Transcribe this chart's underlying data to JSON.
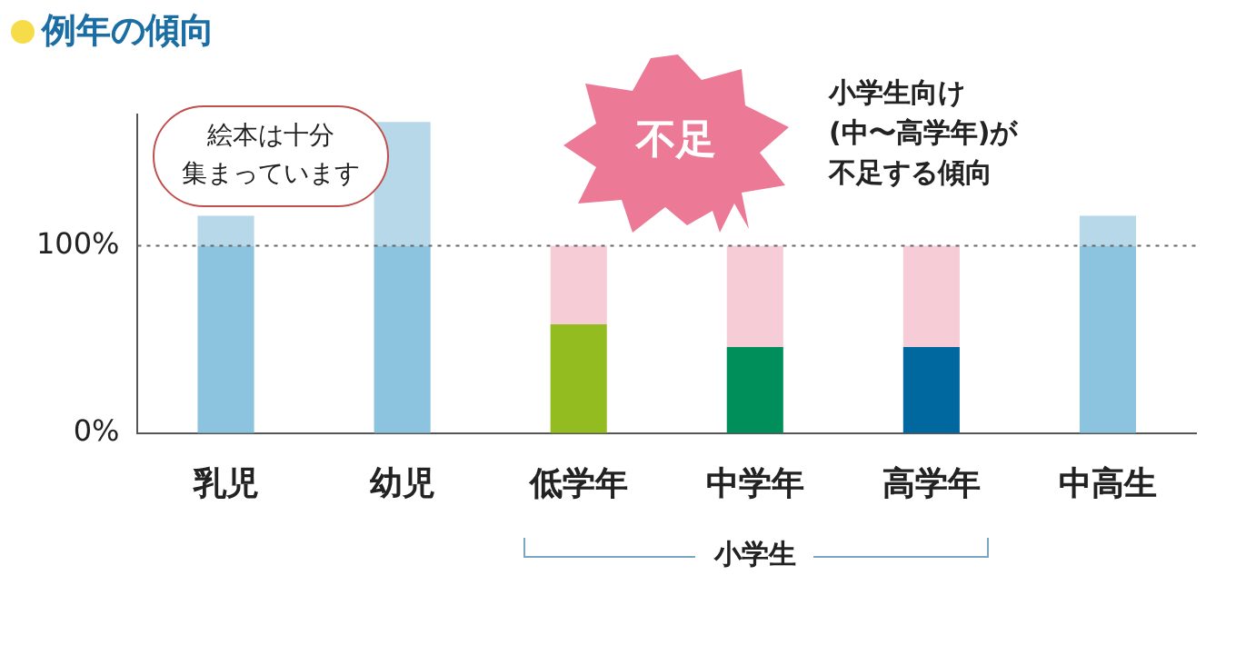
{
  "chart_data": {
    "type": "bar",
    "title": "例年の傾向",
    "stacked": true,
    "categories": [
      "乳児",
      "幼児",
      "低学年",
      "中学年",
      "高学年",
      "中高生"
    ],
    "series": [
      {
        "colors": [
          "#8cc3de",
          "#8cc3de",
          "#92bc20",
          "#008f5a",
          "#00679f",
          "#8cc3de"
        ],
        "values": [
          100,
          100,
          58,
          46,
          46,
          100
        ]
      },
      {
        "color": "#b7d8e8",
        "values": [
          16,
          66,
          null,
          null,
          null,
          16
        ]
      },
      {
        "color": "#f6cdd6",
        "values": [
          null,
          null,
          42,
          54,
          54,
          null
        ]
      }
    ],
    "ylim": [
      0,
      170
    ],
    "yticks": [
      {
        "value": 0,
        "label": "0%"
      },
      {
        "value": 100,
        "label": "100%"
      }
    ],
    "grid": false,
    "legend": false,
    "ref_lines": [
      {
        "axis": "y",
        "value": 100,
        "color": "#666666",
        "line_style": "dotted"
      }
    ],
    "annotations": [
      "絵本は十分",
      "集まっています",
      "不足",
      "小学生向け",
      "(中〜高学年)が",
      "不足する傾向",
      "小学生"
    ]
  }
}
